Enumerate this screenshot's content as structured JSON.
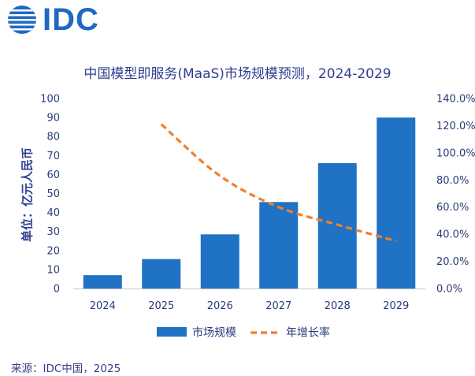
{
  "logo": {
    "text": "IDC"
  },
  "chart_data": {
    "type": "bar",
    "title": "中国模型即服务(MaaS)市场规模预测，2024-2029",
    "ylabel": "单位：亿元人民币",
    "categories": [
      "2024",
      "2025",
      "2026",
      "2027",
      "2028",
      "2029"
    ],
    "ylim": [
      0,
      100
    ],
    "yticks": [
      "0",
      "10",
      "20",
      "30",
      "40",
      "50",
      "60",
      "70",
      "80",
      "90",
      "100"
    ],
    "y2lim": [
      0,
      140
    ],
    "y2ticks": [
      "0.0%",
      "20.0%",
      "40.0%",
      "60.0%",
      "80.0%",
      "100.0%",
      "120.0%",
      "140.0%"
    ],
    "series": [
      {
        "name": "市场规模",
        "type": "bar",
        "axis": "left",
        "color": "#1f72c4",
        "values": [
          7,
          15.5,
          28.5,
          45.5,
          66,
          90
        ]
      },
      {
        "name": "年增长率",
        "type": "line",
        "axis": "right",
        "style": "dashed",
        "color": "#f07f2e",
        "values": [
          null,
          121,
          83,
          60,
          47,
          35
        ]
      }
    ],
    "grid": false,
    "legend": "bottom"
  },
  "source": "来源：IDC中国，2025"
}
